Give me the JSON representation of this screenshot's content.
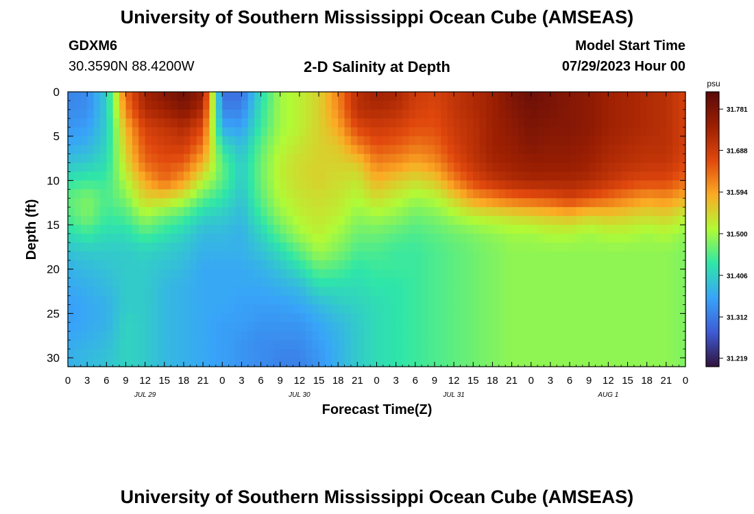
{
  "page": {
    "title": "University of Southern Mississippi Ocean Cube (AMSEAS)",
    "footer_title": "University of Southern Mississippi Ocean Cube (AMSEAS)",
    "station": "GDXM6",
    "coords": "30.3590N  88.4200W",
    "plot_title": "2-D Salinity at Depth",
    "model_start_label": "Model Start Time",
    "model_start_value": "07/29/2023 Hour 00"
  },
  "colors": {
    "c0": "#30123b",
    "c1": "#3e5bd5",
    "c2": "#38a4f9",
    "c3": "#2fe6a8",
    "c4": "#b1fa36",
    "c5": "#fbab24",
    "c6": "#e1480d",
    "c7": "#9c1f02",
    "c8": "#5a0a0a"
  },
  "chart_data": {
    "type": "heatmap",
    "title": "2-D Salinity at Depth",
    "xlabel": "Forecast Time(Z)",
    "ylabel": "Depth (ft)",
    "x_range_hours": [
      0,
      96
    ],
    "x_tick_labels": [
      "0",
      "3",
      "6",
      "9",
      "12",
      "15",
      "18",
      "21",
      "0",
      "3",
      "6",
      "9",
      "12",
      "15",
      "18",
      "21",
      "0",
      "3",
      "6",
      "9",
      "12",
      "15",
      "18",
      "21",
      "0",
      "3",
      "6",
      "9",
      "12",
      "15",
      "18",
      "21",
      "0"
    ],
    "day_labels": [
      {
        "label": "JUL 29",
        "hour": 12
      },
      {
        "label": "JUL 30",
        "hour": 36
      },
      {
        "label": "JUL 31",
        "hour": 60
      },
      {
        "label": "AUG 1",
        "hour": 84
      }
    ],
    "ylim": [
      0,
      31
    ],
    "y_ticks": [
      0,
      5,
      10,
      15,
      20,
      25,
      30
    ],
    "colorbar": {
      "unit": "psu",
      "range": [
        31.2,
        31.82
      ],
      "tick_values": [
        31.219,
        31.312,
        31.406,
        31.5,
        31.594,
        31.688,
        31.781
      ],
      "tick_labels": [
        "31.219",
        "31.312",
        "31.406",
        "31.500",
        "31.594",
        "31.688",
        "31.781"
      ]
    },
    "depths_ft": [
      0,
      2,
      4,
      6,
      8,
      10,
      12,
      14,
      16,
      18,
      20,
      22,
      24,
      26,
      28,
      30,
      31
    ],
    "column_hours": [
      0,
      3,
      6,
      9,
      12,
      15,
      18,
      21,
      24,
      27,
      30,
      33,
      36,
      39,
      42,
      45,
      48,
      51,
      54,
      57,
      60,
      63,
      66,
      69,
      72,
      75,
      78,
      81,
      84,
      87,
      90,
      93,
      96
    ],
    "salinity_psu": [
      [
        31.32,
        31.33,
        31.34,
        31.36,
        31.39,
        31.43,
        31.46,
        31.45,
        31.42,
        31.39,
        31.37,
        31.36,
        31.35,
        31.35,
        31.36,
        31.37,
        31.37
      ],
      [
        31.33,
        31.33,
        31.35,
        31.37,
        31.4,
        31.44,
        31.48,
        31.48,
        31.44,
        31.4,
        31.38,
        31.37,
        31.36,
        31.36,
        31.37,
        31.38,
        31.38
      ],
      [
        31.4,
        31.4,
        31.4,
        31.41,
        31.42,
        31.44,
        31.45,
        31.44,
        31.42,
        31.4,
        31.39,
        31.38,
        31.37,
        31.37,
        31.38,
        31.39,
        31.39
      ],
      [
        31.64,
        31.62,
        31.58,
        31.56,
        31.54,
        31.51,
        31.48,
        31.45,
        31.42,
        31.4,
        31.4,
        31.4,
        31.4,
        31.41,
        31.41,
        31.41,
        31.41
      ],
      [
        31.74,
        31.72,
        31.68,
        31.66,
        31.64,
        31.59,
        31.55,
        31.5,
        31.45,
        31.41,
        31.4,
        31.4,
        31.4,
        31.4,
        31.4,
        31.4,
        31.4
      ],
      [
        31.77,
        31.74,
        31.7,
        31.68,
        31.66,
        31.64,
        31.55,
        31.47,
        31.43,
        31.4,
        31.39,
        31.38,
        31.38,
        31.38,
        31.38,
        31.38,
        31.38
      ],
      [
        31.8,
        31.77,
        31.72,
        31.69,
        31.65,
        31.6,
        31.52,
        31.45,
        31.41,
        31.39,
        31.38,
        31.37,
        31.37,
        31.37,
        31.37,
        31.37,
        31.37
      ],
      [
        31.75,
        31.72,
        31.67,
        31.63,
        31.58,
        31.52,
        31.46,
        31.41,
        31.38,
        31.37,
        31.36,
        31.36,
        31.36,
        31.36,
        31.36,
        31.36,
        31.36
      ],
      [
        31.3,
        31.32,
        31.36,
        31.42,
        31.46,
        31.46,
        31.43,
        31.4,
        31.38,
        31.37,
        31.36,
        31.36,
        31.36,
        31.35,
        31.35,
        31.35,
        31.35
      ],
      [
        31.3,
        31.32,
        31.35,
        31.38,
        31.4,
        31.4,
        31.39,
        31.38,
        31.37,
        31.37,
        31.36,
        31.36,
        31.35,
        31.35,
        31.34,
        31.34,
        31.34
      ],
      [
        31.42,
        31.43,
        31.44,
        31.46,
        31.47,
        31.47,
        31.46,
        31.44,
        31.41,
        31.39,
        31.37,
        31.36,
        31.35,
        31.34,
        31.33,
        31.33,
        31.33
      ],
      [
        31.5,
        31.5,
        31.5,
        31.51,
        31.52,
        31.52,
        31.51,
        31.49,
        31.46,
        31.42,
        31.39,
        31.37,
        31.35,
        31.34,
        31.33,
        31.32,
        31.32
      ],
      [
        31.52,
        31.52,
        31.52,
        31.53,
        31.54,
        31.54,
        31.53,
        31.52,
        31.5,
        31.46,
        31.42,
        31.38,
        31.36,
        31.34,
        31.33,
        31.32,
        31.32
      ],
      [
        31.55,
        31.55,
        31.55,
        31.55,
        31.55,
        31.55,
        31.54,
        31.53,
        31.52,
        31.5,
        31.46,
        31.42,
        31.38,
        31.36,
        31.35,
        31.34,
        31.34
      ],
      [
        31.62,
        31.61,
        31.59,
        31.56,
        31.55,
        31.54,
        31.53,
        31.52,
        31.5,
        31.48,
        31.45,
        31.42,
        31.4,
        31.38,
        31.37,
        31.37,
        31.37
      ],
      [
        31.71,
        31.71,
        31.67,
        31.62,
        31.56,
        31.53,
        31.51,
        31.49,
        31.47,
        31.45,
        31.43,
        31.42,
        31.41,
        31.4,
        31.4,
        31.4,
        31.4
      ],
      [
        31.74,
        31.72,
        31.69,
        31.66,
        31.62,
        31.58,
        31.54,
        31.5,
        31.47,
        31.45,
        31.44,
        31.43,
        31.42,
        31.42,
        31.42,
        31.42,
        31.42
      ],
      [
        31.73,
        31.71,
        31.68,
        31.65,
        31.61,
        31.56,
        31.52,
        31.49,
        31.46,
        31.44,
        31.44,
        31.43,
        31.43,
        31.43,
        31.43,
        31.43,
        31.43
      ],
      [
        31.69,
        31.68,
        31.66,
        31.63,
        31.59,
        31.54,
        31.5,
        31.47,
        31.45,
        31.44,
        31.44,
        31.44,
        31.44,
        31.44,
        31.44,
        31.44,
        31.44
      ],
      [
        31.68,
        31.67,
        31.66,
        31.64,
        31.61,
        31.56,
        31.51,
        31.48,
        31.46,
        31.45,
        31.45,
        31.45,
        31.45,
        31.45,
        31.45,
        31.45,
        31.45
      ],
      [
        31.7,
        31.7,
        31.69,
        31.68,
        31.66,
        31.62,
        31.55,
        31.5,
        31.47,
        31.46,
        31.46,
        31.46,
        31.46,
        31.46,
        31.46,
        31.46,
        31.46
      ],
      [
        31.72,
        31.72,
        31.71,
        31.71,
        31.7,
        31.67,
        31.6,
        31.52,
        31.48,
        31.47,
        31.47,
        31.47,
        31.47,
        31.47,
        31.47,
        31.47,
        31.47
      ],
      [
        31.74,
        31.74,
        31.74,
        31.74,
        31.73,
        31.7,
        31.62,
        31.53,
        31.49,
        31.48,
        31.48,
        31.48,
        31.48,
        31.48,
        31.48,
        31.48,
        31.48
      ],
      [
        31.78,
        31.77,
        31.76,
        31.75,
        31.74,
        31.72,
        31.64,
        31.54,
        31.5,
        31.49,
        31.49,
        31.49,
        31.49,
        31.49,
        31.49,
        31.49,
        31.49
      ],
      [
        31.8,
        31.79,
        31.78,
        31.77,
        31.75,
        31.73,
        31.65,
        31.55,
        31.5,
        31.49,
        31.49,
        31.49,
        31.49,
        31.49,
        31.49,
        31.49,
        31.49
      ],
      [
        31.78,
        31.78,
        31.77,
        31.76,
        31.75,
        31.73,
        31.66,
        31.56,
        31.51,
        31.49,
        31.49,
        31.49,
        31.49,
        31.49,
        31.49,
        31.49,
        31.49
      ],
      [
        31.77,
        31.77,
        31.77,
        31.76,
        31.75,
        31.73,
        31.68,
        31.57,
        31.51,
        31.49,
        31.49,
        31.49,
        31.49,
        31.49,
        31.49,
        31.49,
        31.49
      ],
      [
        31.76,
        31.76,
        31.76,
        31.75,
        31.74,
        31.72,
        31.66,
        31.55,
        31.5,
        31.49,
        31.49,
        31.49,
        31.49,
        31.49,
        31.49,
        31.49,
        31.49
      ],
      [
        31.74,
        31.74,
        31.74,
        31.73,
        31.72,
        31.7,
        31.64,
        31.56,
        31.51,
        31.49,
        31.49,
        31.49,
        31.49,
        31.49,
        31.49,
        31.49,
        31.49
      ],
      [
        31.73,
        31.73,
        31.73,
        31.72,
        31.71,
        31.68,
        31.62,
        31.55,
        31.51,
        31.49,
        31.49,
        31.49,
        31.49,
        31.49,
        31.49,
        31.49,
        31.49
      ],
      [
        31.72,
        31.72,
        31.72,
        31.71,
        31.7,
        31.67,
        31.6,
        31.54,
        31.5,
        31.49,
        31.49,
        31.49,
        31.49,
        31.49,
        31.49,
        31.49,
        31.49
      ],
      [
        31.71,
        31.71,
        31.71,
        31.71,
        31.7,
        31.67,
        31.61,
        31.55,
        31.51,
        31.49,
        31.49,
        31.49,
        31.49,
        31.49,
        31.49,
        31.49,
        31.49
      ],
      [
        31.68,
        31.68,
        31.68,
        31.68,
        31.67,
        31.64,
        31.58,
        31.52,
        31.49,
        31.48,
        31.48,
        31.48,
        31.48,
        31.48,
        31.48,
        31.48,
        31.48
      ]
    ]
  }
}
